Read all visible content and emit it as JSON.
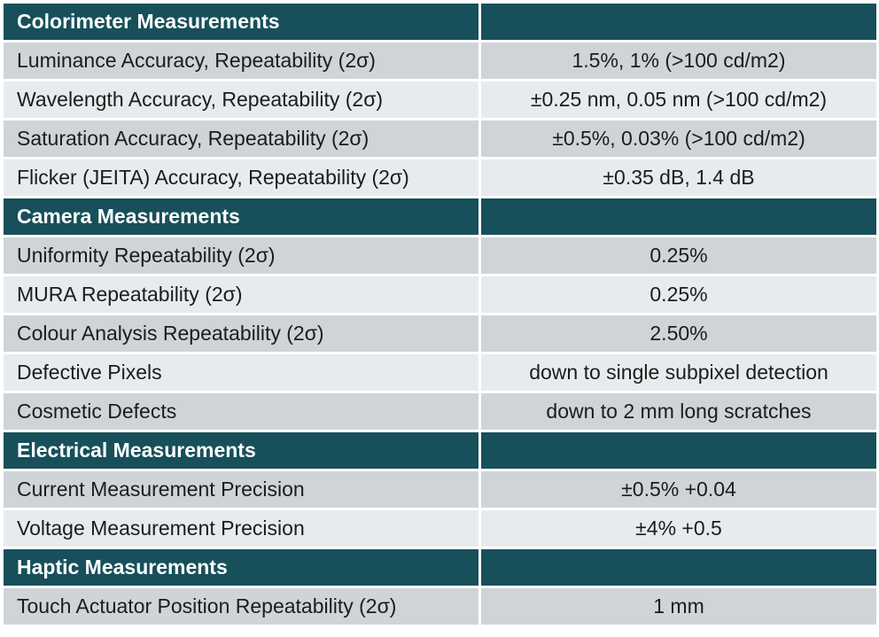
{
  "sections": [
    {
      "title": "Colorimeter Measurements",
      "rows": [
        {
          "label": "Luminance Accuracy, Repeatability (2σ)",
          "value": "1.5%, 1% (>100 cd/m2)"
        },
        {
          "label": "Wavelength Accuracy, Repeatability (2σ)",
          "value": "±0.25 nm, 0.05 nm  (>100 cd/m2)"
        },
        {
          "label": "Saturation Accuracy, Repeatability (2σ)",
          "value": "±0.5%, 0.03%  (>100 cd/m2)"
        },
        {
          "label": "Flicker (JEITA) Accuracy, Repeatability  (2σ)",
          "value": "±0.35 dB, 1.4 dB"
        }
      ]
    },
    {
      "title": "Camera Measurements",
      "rows": [
        {
          "label": "Uniformity  Repeatability (2σ)",
          "value": "0.25%"
        },
        {
          "label": "MURA Repeatability (2σ)",
          "value": "0.25%"
        },
        {
          "label": "Colour Analysis Repeatability (2σ)",
          "value": "2.50%"
        },
        {
          "label": "Defective Pixels",
          "value": "down to single subpixel detection"
        },
        {
          "label": "Cosmetic Defects",
          "value": "down to 2 mm long scratches"
        }
      ]
    },
    {
      "title": "Electrical Measurements",
      "rows": [
        {
          "label": "Current Measurement Precision",
          "value": "±0.5% +0.04"
        },
        {
          "label": "Voltage Measurement Precision",
          "value": "±4% +0.5"
        }
      ]
    },
    {
      "title": "Haptic Measurements",
      "rows": [
        {
          "label": "Touch Actuator Position Repeatability  (2σ)",
          "value": "1 mm"
        }
      ]
    }
  ],
  "colors": {
    "header_bg": "#17505a",
    "header_text": "#ffffff",
    "row_shade_a": "#cfd4d9",
    "row_shade_b": "#e8ebed"
  }
}
